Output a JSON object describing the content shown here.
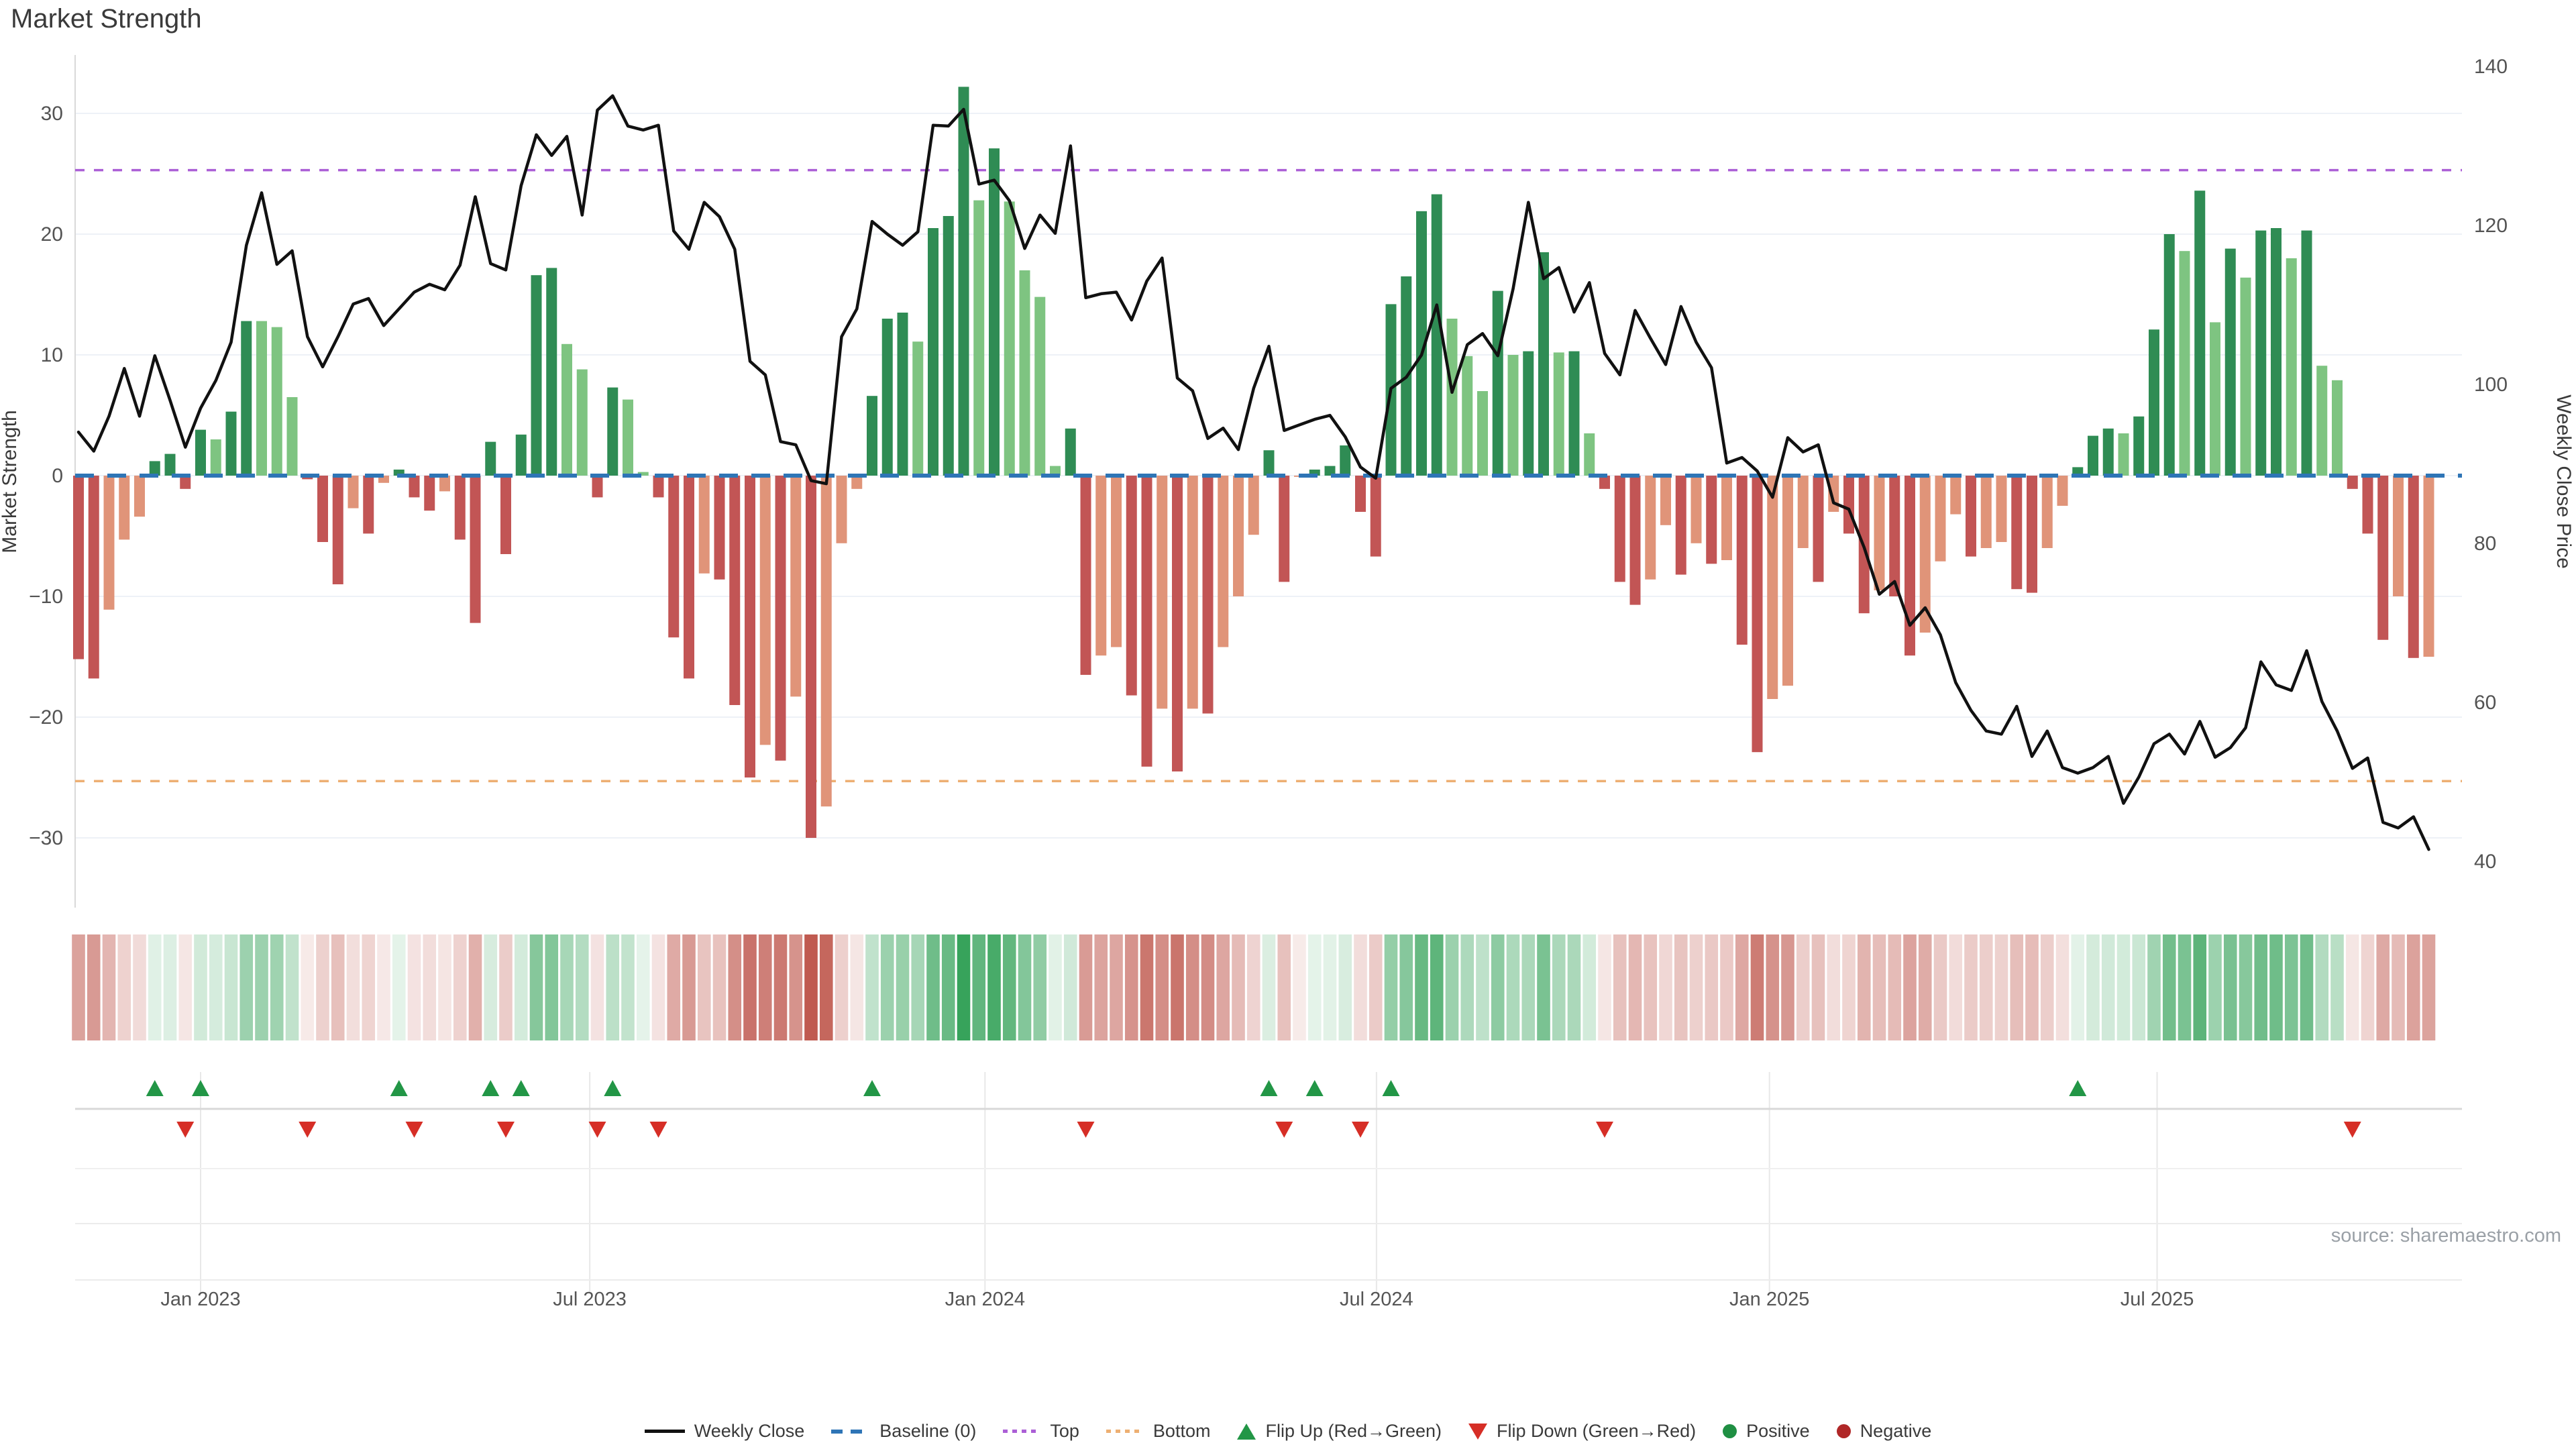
{
  "title": "Market Strength",
  "source_note": "source: sharemaestro.com",
  "axes": {
    "left_label": "Market Strength",
    "right_label": "Weekly Close Price",
    "left_ticks": [
      30,
      20,
      10,
      0,
      -10,
      -20,
      -30
    ],
    "right_ticks": [
      140,
      120,
      100,
      80,
      60,
      40
    ],
    "x_ticks": [
      {
        "label": "Jan 2023",
        "week": 8
      },
      {
        "label": "Jul 2023",
        "week": 33.5
      },
      {
        "label": "Jan 2024",
        "week": 59.4
      },
      {
        "label": "Jul 2024",
        "week": 85.05
      },
      {
        "label": "Jan 2025",
        "week": 110.8
      },
      {
        "label": "Jul 2025",
        "week": 136.2
      }
    ]
  },
  "chart_data": {
    "type": "bar",
    "title": "Market Strength",
    "xlabel": "",
    "ylabel_left": "Market Strength",
    "ylabel_right": "Weekly Close Price",
    "left_range": [
      -33,
      35
    ],
    "right_range": [
      38,
      142
    ],
    "grid": true,
    "legend_position": "bottom",
    "baseline": 0,
    "top_threshold": 25.3,
    "bottom_threshold": -25.3,
    "series": [
      {
        "name": "Market Strength",
        "type": "bar",
        "axis": "left",
        "values": [
          -15.2,
          -16.8,
          -11.1,
          -5.3,
          -3.4,
          1.2,
          1.8,
          -1.1,
          3.8,
          3.0,
          5.3,
          12.8,
          12.8,
          12.3,
          6.5,
          -0.3,
          -5.5,
          -9.0,
          -2.7,
          -4.8,
          -0.6,
          0.5,
          -1.8,
          -2.9,
          -1.3,
          -5.3,
          -12.2,
          2.8,
          -6.5,
          3.4,
          16.6,
          17.2,
          10.9,
          8.8,
          -1.8,
          7.3,
          6.3,
          0.3,
          -1.8,
          -13.4,
          -16.8,
          -8.1,
          -8.6,
          -19.0,
          -25.0,
          -22.3,
          -23.6,
          -18.3,
          -30.0,
          -27.4,
          -5.6,
          -1.1,
          6.6,
          13.0,
          13.5,
          11.1,
          20.5,
          21.5,
          32.2,
          22.8,
          27.1,
          22.7,
          17.0,
          14.8,
          0.8,
          3.9,
          -16.5,
          -14.9,
          -14.2,
          -18.2,
          -24.1,
          -19.3,
          -24.5,
          -19.3,
          -19.7,
          -14.2,
          -10.0,
          -4.9,
          2.1,
          -8.8,
          -0.1,
          0.5,
          0.8,
          2.5,
          -3.0,
          -6.7,
          14.2,
          16.5,
          21.9,
          23.3,
          13.0,
          9.9,
          7.0,
          15.3,
          10.0,
          10.3,
          18.5,
          10.2,
          10.3,
          3.5,
          -1.1,
          -8.8,
          -10.7,
          -8.6,
          -4.1,
          -8.2,
          -5.6,
          -7.3,
          -7.0,
          -14.0,
          -22.9,
          -18.5,
          -17.4,
          -6.0,
          -8.8,
          -3.0,
          -4.8,
          -11.4,
          -9.5,
          -10.0,
          -14.9,
          -13.0,
          -7.1,
          -3.2,
          -6.7,
          -6.0,
          -5.5,
          -9.4,
          -9.7,
          -6.0,
          -2.5,
          0.7,
          3.3,
          3.9,
          3.5,
          4.9,
          12.1,
          20.0,
          18.6,
          23.6,
          12.7,
          18.8,
          16.4,
          20.3,
          20.5,
          18.0,
          20.3,
          9.1,
          7.9,
          -1.1,
          -4.8,
          -13.6,
          -10.0,
          -15.1,
          -15.0
        ]
      },
      {
        "name": "Weekly Close",
        "type": "line",
        "axis": "right",
        "values": [
          94,
          91.6,
          96,
          102,
          96,
          103.6,
          98,
          92.1,
          97,
          100.5,
          105.3,
          117.5,
          124.1,
          115.1,
          116.8,
          106,
          102.2,
          106,
          110.1,
          110.8,
          107.4,
          109.5,
          111.6,
          112.6,
          111.9,
          115,
          123.6,
          115.2,
          114.4,
          125,
          131.4,
          128.8,
          131.2,
          121.3,
          134.5,
          136.3,
          132.5,
          132,
          132.6,
          119.3,
          117,
          122.9,
          121.1,
          117,
          102.9,
          101.2,
          92.8,
          92.4,
          87.9,
          87.5,
          106,
          109.5,
          120.5,
          118.9,
          117.5,
          119.2,
          132.6,
          132.5,
          134.6,
          125.2,
          125.7,
          123.1,
          117.1,
          121.3,
          119,
          130,
          110.9,
          111.4,
          111.6,
          108.1,
          113,
          115.9,
          100.8,
          99.2,
          93.2,
          94.5,
          91.8,
          99.5,
          104.8,
          94.2,
          94.9,
          95.6,
          96.1,
          93.4,
          89.6,
          88.2,
          99.5,
          100.9,
          103.7,
          110,
          99,
          105,
          106.4,
          103.6,
          112,
          122.9,
          113.3,
          114.7,
          109.1,
          112.8,
          103.9,
          101.2,
          109.3,
          105.8,
          102.5,
          109.8,
          105.3,
          102.1,
          90.1,
          90.8,
          89.1,
          85.8,
          93.3,
          91.5,
          92.4,
          85.1,
          84.3,
          79.5,
          73.6,
          75.2,
          69.7,
          71.9,
          68.5,
          62.5,
          59.0,
          56.4,
          56.0,
          59.5,
          53.2,
          56.4,
          51.8,
          51.1,
          51.8,
          53.2,
          47.3,
          50.6,
          54.8,
          56.0,
          53.5,
          57.6,
          53.1,
          54.3,
          56.8,
          65.1,
          62.2,
          61.5,
          66.5,
          60.1,
          56.4,
          51.7,
          53.0,
          44.9,
          44.2,
          45.6,
          41.5
        ]
      }
    ],
    "flip_up_weeks": [
      5,
      8,
      21,
      27,
      29,
      35,
      52,
      78,
      81,
      86,
      131
    ],
    "flip_down_weeks": [
      7,
      15,
      22,
      28,
      34,
      38,
      66,
      79,
      84,
      100,
      149
    ]
  },
  "legend": {
    "items": [
      {
        "label": "Weekly Close",
        "swatch": "line"
      },
      {
        "label": "Baseline (0)",
        "swatch": "dashed-blue"
      },
      {
        "label": "Top",
        "swatch": "dotted-purple"
      },
      {
        "label": "Bottom",
        "swatch": "dotted-orange"
      },
      {
        "label": "Flip Up (Red→Green)",
        "swatch": "triangle-up-green"
      },
      {
        "label": "Flip Down (Green→Red)",
        "swatch": "triangle-down-red"
      },
      {
        "label": "Positive",
        "swatch": "dot-green"
      },
      {
        "label": "Negative",
        "swatch": "dot-dark-red"
      }
    ]
  },
  "colors": {
    "bar_positive_strong": "#2f8c54",
    "bar_positive_weak": "#7ec481",
    "bar_negative_strong": "#c25555",
    "bar_negative_weak": "#e09479",
    "price_line": "#111111",
    "baseline": "#2e75b6",
    "top_line": "#ab5fd6",
    "bottom_line": "#edaf72",
    "grid": "#edf1f7",
    "spine": "#d9d9d9",
    "tick_text": "#535353",
    "flip_up_marker": "#229646",
    "flip_down_marker": "#d62e26",
    "heat_green": "#37a35b",
    "heat_red": "#c05a50"
  }
}
